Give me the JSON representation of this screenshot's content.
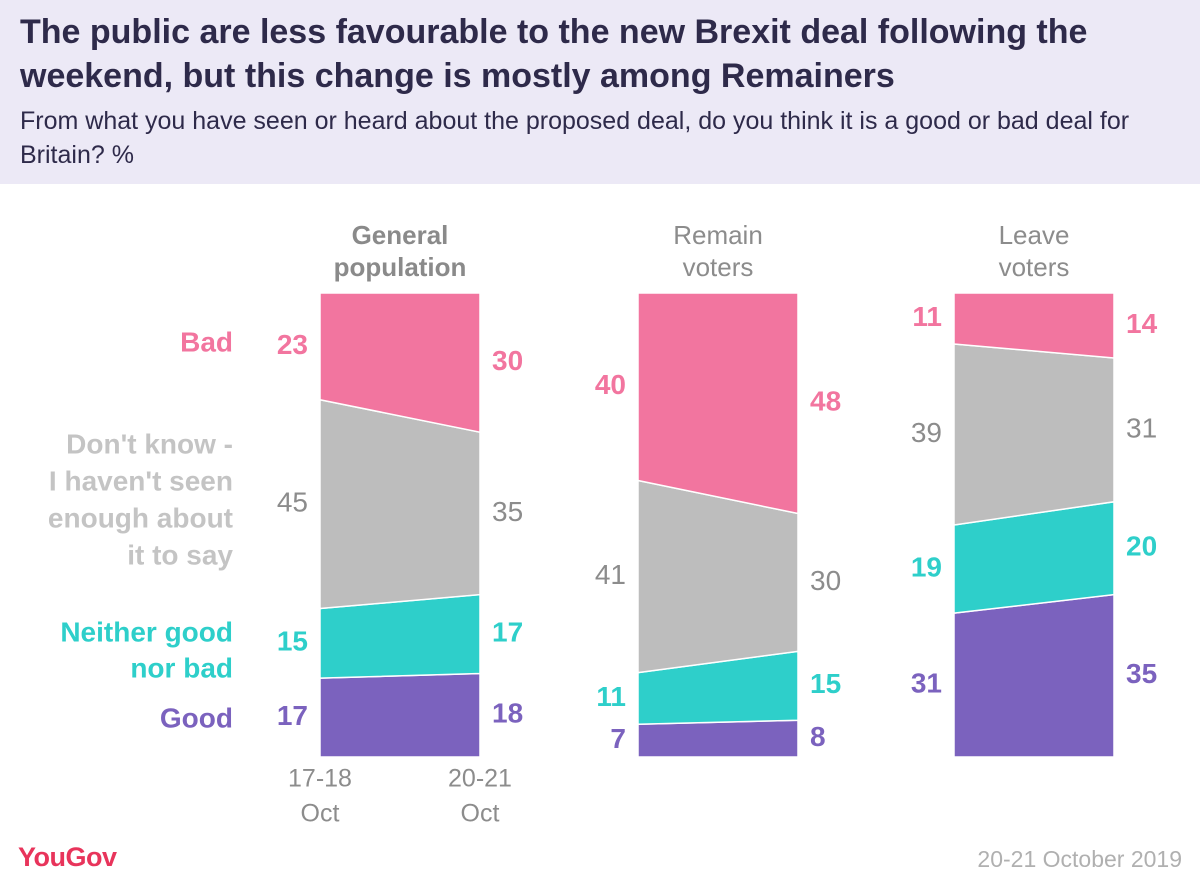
{
  "header": {
    "title": "The public are less favourable to the new Brexit deal following the weekend, but this change is mostly among Remainers",
    "subtitle": "From what you have seen or heard about the proposed deal, do you think it is a good or bad deal for Britain? %"
  },
  "footer": {
    "brand": "YouGov",
    "date": "20-21 October 2019"
  },
  "colors": {
    "Bad": "#f2759f",
    "Don't know": "#bdbdbd",
    "Neither": "#2ecfca",
    "Good": "#7b62be",
    "text_dark": "#2e2a4a",
    "text_grey": "#8c8c8c"
  },
  "chart_data": {
    "type": "area",
    "x": [
      "17-18 Oct",
      "20-21 Oct"
    ],
    "ylim": [
      0,
      100
    ],
    "stack_order": [
      "Good",
      "Neither good nor bad",
      "Don't know - I haven't seen enough about it to say",
      "Bad"
    ],
    "legend_labels": [
      "Bad",
      "Don't know - I haven't seen enough about it to say",
      "Neither good nor bad",
      "Good"
    ],
    "x_tick_labels": [
      "17-18\nOct",
      "20-21\nOct"
    ],
    "panels": [
      {
        "label": "General population",
        "emphasis": true,
        "series": [
          {
            "name": "Good",
            "values": [
              17,
              18
            ]
          },
          {
            "name": "Neither good nor bad",
            "values": [
              15,
              17
            ]
          },
          {
            "name": "Don't know - I haven't seen enough about it to say",
            "values": [
              45,
              35
            ]
          },
          {
            "name": "Bad",
            "values": [
              23,
              30
            ]
          }
        ]
      },
      {
        "label": "Remain voters",
        "emphasis": false,
        "series": [
          {
            "name": "Good",
            "values": [
              7,
              8
            ]
          },
          {
            "name": "Neither good nor bad",
            "values": [
              11,
              15
            ]
          },
          {
            "name": "Don't know - I haven't seen enough about it to say",
            "values": [
              41,
              30
            ]
          },
          {
            "name": "Bad",
            "values": [
              40,
              48
            ]
          }
        ]
      },
      {
        "label": "Leave voters",
        "emphasis": false,
        "series": [
          {
            "name": "Good",
            "values": [
              31,
              35
            ]
          },
          {
            "name": "Neither good nor bad",
            "values": [
              19,
              20
            ]
          },
          {
            "name": "Don't know - I haven't seen enough about it to say",
            "values": [
              39,
              31
            ]
          },
          {
            "name": "Bad",
            "values": [
              11,
              14
            ]
          }
        ]
      }
    ]
  }
}
